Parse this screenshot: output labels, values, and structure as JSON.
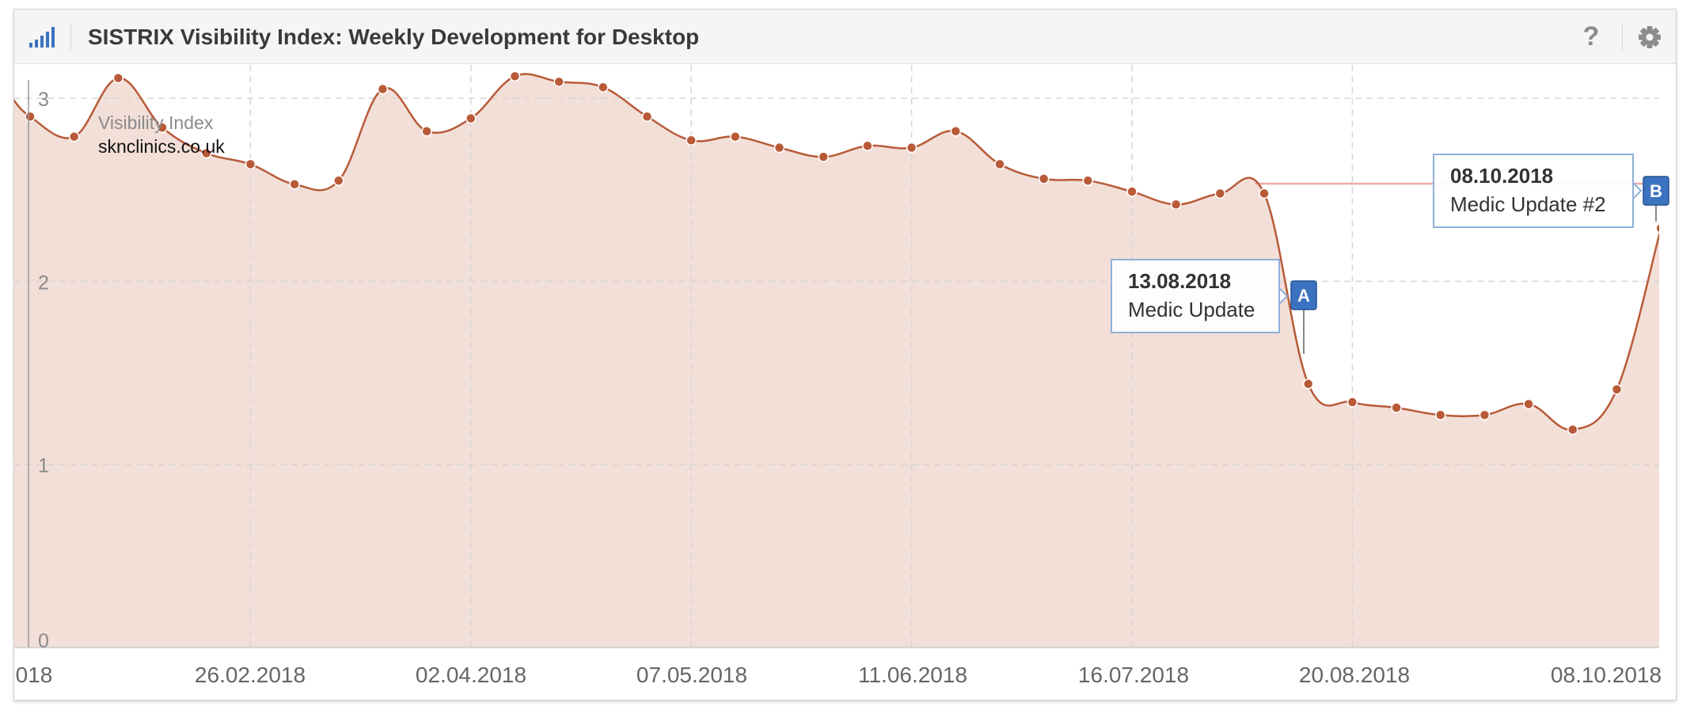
{
  "panel": {
    "title": "SISTRIX Visibility Index: Weekly Development for Desktop",
    "icons": {
      "chart": "signal-bars-icon",
      "help": "question-mark-icon",
      "settings": "gear-icon"
    },
    "help_glyph": "?"
  },
  "colors": {
    "line": "#b85a38",
    "area": "#f2dfd8",
    "marker": "#b85a38",
    "flag": "#3b73c0",
    "grid": "#d6d6d6",
    "reference": "#f3a8a8"
  },
  "chart_data": {
    "type": "area",
    "xlabel": "",
    "ylabel": "",
    "ylim": [
      0,
      3.1
    ],
    "grid": true,
    "legend_position": "top-left",
    "y_ticks": [
      "0",
      "1",
      "2",
      "3"
    ],
    "x_ticks": [
      "018",
      "26.02.2018",
      "02.04.2018",
      "07.05.2018",
      "11.06.2018",
      "16.07.2018",
      "20.08.2018",
      "08.10.2018"
    ],
    "legend": {
      "series_label": "Visibility Index",
      "domain": "sknclinics.co.uk"
    },
    "series": [
      {
        "name": "sknclinics.co.uk",
        "x": [
          "22.01.2018",
          "29.01.2018",
          "05.02.2018",
          "12.02.2018",
          "19.02.2018",
          "26.02.2018",
          "05.03.2018",
          "12.03.2018",
          "19.03.2018",
          "26.03.2018",
          "02.04.2018",
          "09.04.2018",
          "16.04.2018",
          "23.04.2018",
          "30.04.2018",
          "07.05.2018",
          "14.05.2018",
          "21.05.2018",
          "28.05.2018",
          "04.06.2018",
          "11.06.2018",
          "18.06.2018",
          "25.06.2018",
          "02.07.2018",
          "09.07.2018",
          "16.07.2018",
          "23.07.2018",
          "30.07.2018",
          "06.08.2018",
          "13.08.2018",
          "20.08.2018",
          "27.08.2018",
          "03.09.2018",
          "10.09.2018",
          "17.09.2018",
          "24.09.2018",
          "01.10.2018",
          "08.10.2018"
        ],
        "values": [
          2.9,
          2.79,
          3.11,
          2.84,
          2.7,
          2.64,
          2.53,
          2.55,
          3.05,
          2.82,
          2.89,
          3.12,
          3.09,
          3.06,
          2.9,
          2.77,
          2.79,
          2.73,
          2.68,
          2.74,
          2.73,
          2.82,
          2.64,
          2.56,
          2.55,
          2.49,
          2.42,
          2.48,
          2.48,
          1.44,
          1.34,
          1.31,
          1.27,
          1.27,
          1.33,
          1.19,
          1.41,
          2.29
        ]
      }
    ],
    "events": [
      {
        "flag": "A",
        "date": "13.08.2018",
        "label": "Medic Update"
      },
      {
        "flag": "B",
        "date": "08.10.2018",
        "label": "Medic Update #2"
      }
    ]
  }
}
